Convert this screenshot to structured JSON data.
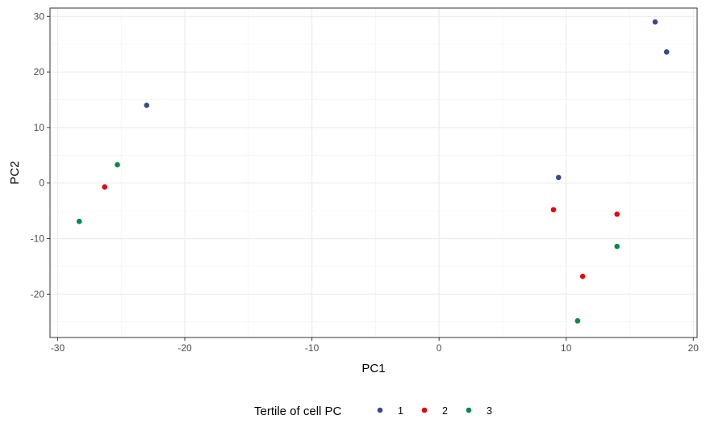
{
  "chart_data": {
    "type": "scatter",
    "title": "",
    "xlabel": "PC1",
    "ylabel": "PC2",
    "xlim": [
      -30.6,
      20.3
    ],
    "ylim": [
      -27.8,
      31.5
    ],
    "x_major_ticks": [
      -30,
      -20,
      -10,
      0,
      10,
      20
    ],
    "x_minor_ticks": [
      -25,
      -15,
      -5,
      5,
      15
    ],
    "x_tick_labels": [
      "-30",
      "-20",
      "-10",
      "0",
      "10",
      "20"
    ],
    "y_major_ticks": [
      -20,
      -10,
      0,
      10,
      20,
      30
    ],
    "y_minor_ticks": [
      -25,
      -15,
      -5,
      5,
      15,
      25
    ],
    "y_tick_labels": [
      "-20",
      "-10",
      "0",
      "10",
      "20",
      "30"
    ],
    "grid": true,
    "legend": {
      "title": "Tertile of cell PC",
      "position": "bottom"
    },
    "series": [
      {
        "name": "1",
        "color": "#3b4a8c",
        "points": [
          {
            "x": -23.0,
            "y": 14.0
          },
          {
            "x": 9.4,
            "y": 1.0
          },
          {
            "x": 17.0,
            "y": 29.0
          },
          {
            "x": 17.9,
            "y": 23.6
          }
        ]
      },
      {
        "name": "2",
        "color": "#e8000b",
        "points": [
          {
            "x": -26.3,
            "y": -0.7
          },
          {
            "x": 9.0,
            "y": -4.8
          },
          {
            "x": 14.0,
            "y": -5.6
          },
          {
            "x": 11.3,
            "y": -16.8
          }
        ]
      },
      {
        "name": "3",
        "color": "#008a45",
        "points": [
          {
            "x": -25.3,
            "y": 3.3
          },
          {
            "x": -28.3,
            "y": -6.9
          },
          {
            "x": 14.0,
            "y": -11.4
          },
          {
            "x": 10.9,
            "y": -24.8
          }
        ]
      }
    ]
  }
}
